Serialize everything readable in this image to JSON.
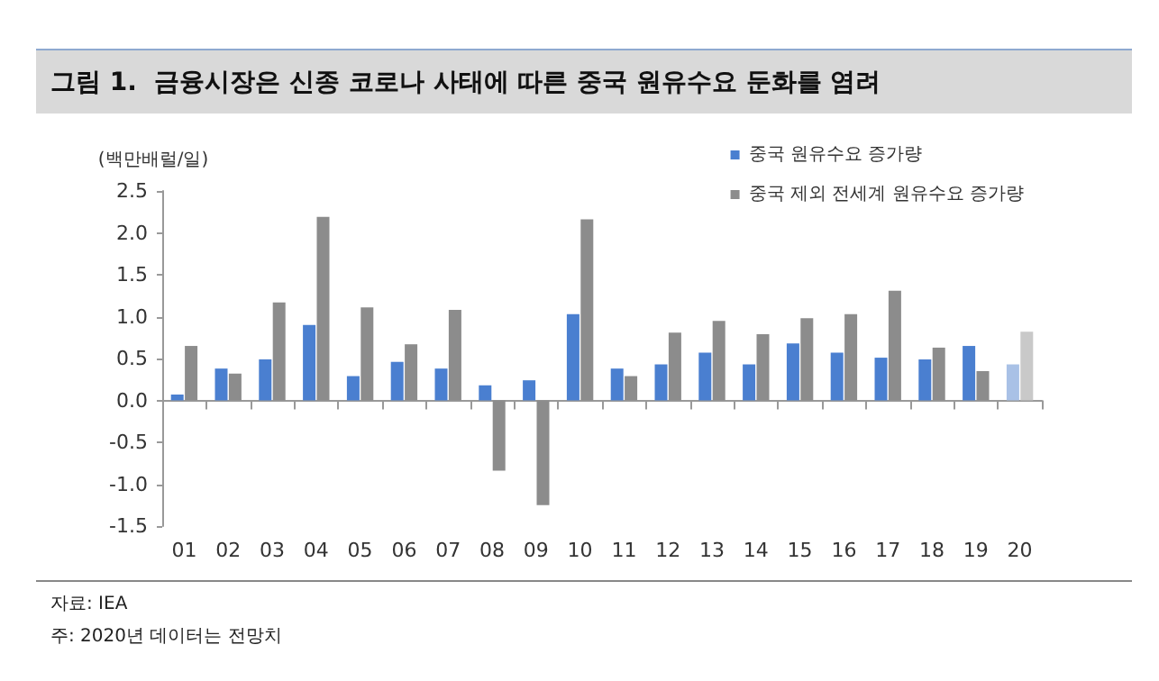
{
  "chart_data": {
    "type": "bar",
    "title": "그림 1.  금융시장은 신종 코로나 사태에 따른 중국 원유수요 둔화를 염려",
    "ylabel": "(백만배럴/일)",
    "categories": [
      "01",
      "02",
      "03",
      "04",
      "05",
      "06",
      "07",
      "08",
      "09",
      "10",
      "11",
      "12",
      "13",
      "14",
      "15",
      "16",
      "17",
      "18",
      "19",
      "20"
    ],
    "series": [
      {
        "name": "중국 원유수요 증가량",
        "color": "#4a7fd0",
        "colors": [
          "#4a7fd0",
          "#4a7fd0",
          "#4a7fd0",
          "#4a7fd0",
          "#4a7fd0",
          "#4a7fd0",
          "#4a7fd0",
          "#4a7fd0",
          "#4a7fd0",
          "#4a7fd0",
          "#4a7fd0",
          "#4a7fd0",
          "#4a7fd0",
          "#4a7fd0",
          "#4a7fd0",
          "#4a7fd0",
          "#4a7fd0",
          "#4a7fd0",
          "#4a7fd0",
          "#a9c1e6"
        ],
        "values": [
          0.07,
          0.38,
          0.49,
          0.9,
          0.29,
          0.46,
          0.38,
          0.18,
          0.24,
          1.03,
          0.38,
          0.43,
          0.57,
          0.43,
          0.68,
          0.57,
          0.51,
          0.49,
          0.65,
          0.43
        ]
      },
      {
        "name": "중국 제외 전세계 원유수요 증가량",
        "color": "#8c8c8c",
        "colors": [
          "#8c8c8c",
          "#8c8c8c",
          "#8c8c8c",
          "#8c8c8c",
          "#8c8c8c",
          "#8c8c8c",
          "#8c8c8c",
          "#8c8c8c",
          "#8c8c8c",
          "#8c8c8c",
          "#8c8c8c",
          "#8c8c8c",
          "#8c8c8c",
          "#8c8c8c",
          "#8c8c8c",
          "#8c8c8c",
          "#8c8c8c",
          "#8c8c8c",
          "#8c8c8c",
          "#c9c9c9"
        ],
        "values": [
          0.65,
          0.32,
          1.17,
          2.19,
          1.11,
          0.67,
          1.08,
          -0.84,
          -1.25,
          2.16,
          0.29,
          0.81,
          0.95,
          0.79,
          0.98,
          1.03,
          1.31,
          0.63,
          0.35,
          0.82
        ]
      }
    ],
    "ylim": [
      -1.5,
      2.5
    ],
    "yticks": [
      {
        "value": -1.5,
        "label": "-1.5"
      },
      {
        "value": -1,
        "label": "-1.0"
      },
      {
        "value": -0.5,
        "label": "-0.5"
      },
      {
        "value": 0,
        "label": "0.0"
      },
      {
        "value": 0.5,
        "label": "0.5"
      },
      {
        "value": 1,
        "label": "1.0"
      },
      {
        "value": 1.5,
        "label": "1.5"
      },
      {
        "value": 2,
        "label": "2.0"
      },
      {
        "value": 2.5,
        "label": "2.5"
      }
    ],
    "legend": "top right",
    "annotations": [
      "자료: IEA",
      "주: 2020년 데이터는 전망치"
    ]
  }
}
